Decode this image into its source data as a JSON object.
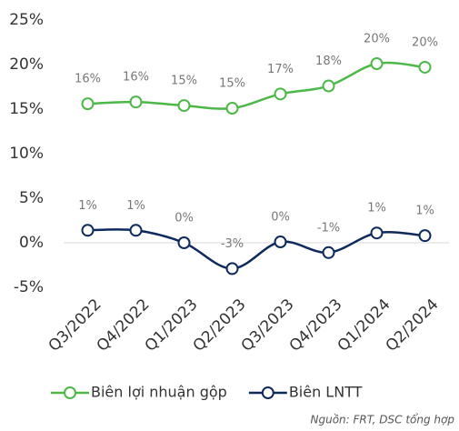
{
  "chart_data": {
    "type": "line",
    "categories": [
      "Q3/2022",
      "Q4/2022",
      "Q1/2023",
      "Q2/2023",
      "Q3/2023",
      "Q4/2023",
      "Q1/2024",
      "Q2/2024"
    ],
    "series": [
      {
        "name": "Biên lợi nhuận gộp",
        "color": "#4cb848",
        "values": [
          15.6,
          15.8,
          15.4,
          15.1,
          16.7,
          17.6,
          20.1,
          19.7
        ],
        "value_labels": [
          "16%",
          "16%",
          "15%",
          "15%",
          "17%",
          "18%",
          "20%",
          "20%"
        ]
      },
      {
        "name": "Biên LNTT",
        "color": "#0e2a5c",
        "values": [
          1.4,
          1.4,
          0.0,
          -2.9,
          0.1,
          -1.1,
          1.1,
          0.8
        ],
        "value_labels": [
          "1%",
          "1%",
          "0%",
          "-3%",
          "0%",
          "-1%",
          "1%",
          "1%"
        ]
      }
    ],
    "ylim": [
      -5,
      25
    ],
    "yticks": [
      {
        "value": -5,
        "label": "-5%"
      },
      {
        "value": 0,
        "label": "0%"
      },
      {
        "value": 5,
        "label": "5%"
      },
      {
        "value": 10,
        "label": "10%"
      },
      {
        "value": 15,
        "label": "15%"
      },
      {
        "value": 20,
        "label": "20%"
      },
      {
        "value": 25,
        "label": "25%"
      }
    ],
    "grid": false,
    "legend": "bottom",
    "source": "Nguồn: FRT, DSC tổng hợp"
  }
}
